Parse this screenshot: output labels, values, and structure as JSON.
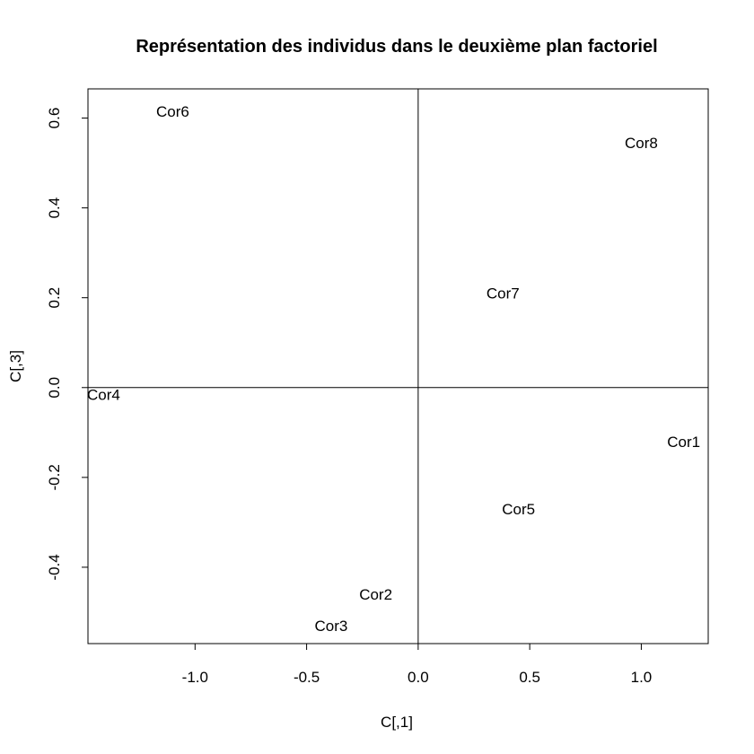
{
  "chart_data": {
    "type": "scatter",
    "title": "Représentation des individus dans le deuxième plan factoriel",
    "xlabel": "C[,1]",
    "ylabel": "C[,3]",
    "xlim": [
      -1.48,
      1.3
    ],
    "ylim": [
      -0.57,
      0.665
    ],
    "x_ticks": [
      -1.0,
      -0.5,
      0.0,
      0.5,
      1.0
    ],
    "x_tick_labels": [
      "-1.0",
      "-0.5",
      "0.0",
      "0.5",
      "1.0"
    ],
    "y_ticks": [
      -0.4,
      -0.2,
      0.0,
      0.2,
      0.4,
      0.6
    ],
    "y_tick_labels": [
      "-0.4",
      "-0.2",
      "0.0",
      "0.2",
      "0.4",
      "0.6"
    ],
    "reference_lines": {
      "x": 0,
      "y": 0
    },
    "grid": false,
    "legend": "none",
    "points": [
      {
        "label": "Cor1",
        "x": 1.19,
        "y": -0.12
      },
      {
        "label": "Cor2",
        "x": -0.19,
        "y": -0.46
      },
      {
        "label": "Cor3",
        "x": -0.39,
        "y": -0.53
      },
      {
        "label": "Cor4",
        "x": -1.41,
        "y": -0.015
      },
      {
        "label": "Cor5",
        "x": 0.45,
        "y": -0.27
      },
      {
        "label": "Cor6",
        "x": -1.1,
        "y": 0.615
      },
      {
        "label": "Cor7",
        "x": 0.38,
        "y": 0.21
      },
      {
        "label": "Cor8",
        "x": 1.0,
        "y": 0.545
      }
    ]
  }
}
